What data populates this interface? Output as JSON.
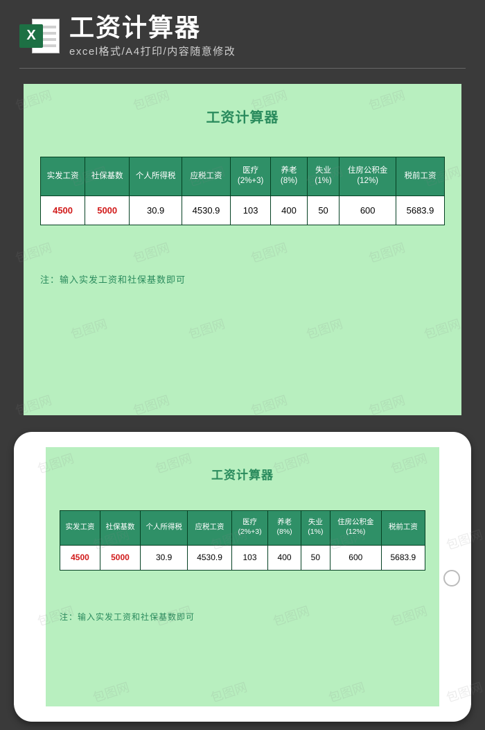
{
  "header": {
    "icon_letter": "X",
    "title": "工资计算器",
    "subtitle": "excel格式/A4打印/内容随意修改"
  },
  "card": {
    "title": "工资计算器",
    "note": "注：输入实发工资和社保基数即可",
    "background_color": "#b8efbf",
    "header_bg": "#2f9067",
    "header_fg": "#ffffff",
    "cell_bg": "#ffffff",
    "border_color": "#044022",
    "input_color": "#d11a1a",
    "title_color": "#2a8b5d",
    "columns": [
      "实发工资",
      "社保基数",
      "个人所得税",
      "应税工资",
      "医疗\n(2%+3)",
      "养老\n(8%)",
      "失业\n(1%)",
      "住房公积金\n(12%)",
      "税前工资"
    ],
    "col_widths_pct": [
      11,
      11,
      13,
      12,
      10,
      9,
      8,
      14,
      12
    ],
    "row": [
      "4500",
      "5000",
      "30.9",
      "4530.9",
      "103",
      "400",
      "50",
      "600",
      "5683.9"
    ],
    "input_cols": [
      0,
      1
    ]
  },
  "watermark_text": "包图网"
}
